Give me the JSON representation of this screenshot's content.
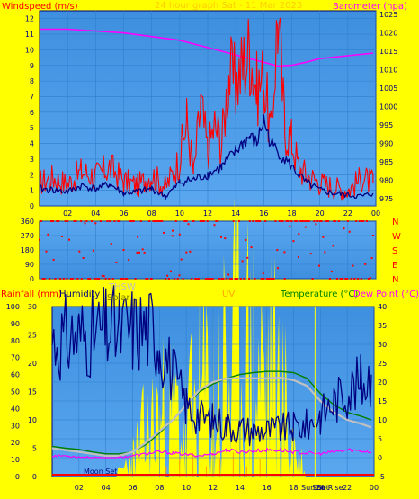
{
  "colors": {
    "background": "#ffff00",
    "plot_bg": "#3e8fdf",
    "plot_bg_light": "#5aa7ef",
    "axis": "#000080",
    "wind": "#ff0000",
    "wind_avg": "#000080",
    "barometer": "#ff00ff",
    "dir": "#ff0000",
    "humidity": "#000080",
    "rain": "#ff0000",
    "solar": "#ffff00",
    "uv": "#ffa500",
    "temperature": "#008000",
    "thsw": "#c0c0c0",
    "dewpoint": "#ff00ff"
  },
  "top": {
    "title": "24 hour graph Sat - 11 Mar 2023",
    "left_label": "Windspeed (m/s)",
    "right_label": "Barometer (hpa)"
  },
  "middle": {
    "compass": [
      "N",
      "W",
      "S",
      "E",
      "N"
    ]
  },
  "bottom": {
    "labels": {
      "rain": "Rainfall (mm)",
      "humidity": "Humidity",
      "thsw": "THSW",
      "solar": "Solar",
      "uv": "UV",
      "temperature": "Temperature (°C)",
      "dewpoint": "Dew Point (°C)"
    },
    "moon_set": "Moon Set",
    "sun_set": "Sun Set",
    "sun_rise": "Sun Rise"
  },
  "chart_data": [
    {
      "type": "line",
      "name": "wind-barometer",
      "x_ticks": [
        "02",
        "04",
        "06",
        "08",
        "10",
        "12",
        "14",
        "16",
        "18",
        "20",
        "22",
        "00"
      ],
      "x_hours": [
        1,
        3,
        5,
        7,
        9,
        11,
        13,
        15,
        17,
        19,
        21,
        23
      ],
      "y_left_ticks": [
        "0",
        "1",
        "2",
        "3",
        "4",
        "5",
        "6",
        "7",
        "8",
        "9",
        "10",
        "11",
        "12"
      ],
      "y_left_lim": [
        0,
        12.5
      ],
      "y_right_ticks": [
        "975",
        "980",
        "985",
        "990",
        "995",
        "1000",
        "1005",
        "1010",
        "1015",
        "1020",
        "1025"
      ],
      "y_right_lim": [
        973,
        1026
      ],
      "series": [
        {
          "key": "wind_gust",
          "axis": "left",
          "x": [
            0,
            1,
            2,
            3,
            4,
            5,
            6,
            7,
            8,
            9,
            10,
            10.5,
            11,
            11.5,
            12,
            12.5,
            13,
            13.5,
            14,
            14.5,
            15,
            15.5,
            16,
            16.5,
            17,
            17.5,
            18,
            18.5,
            19,
            20,
            21,
            22,
            23,
            23.8
          ],
          "y": [
            1.5,
            1.8,
            1.4,
            2.2,
            1.9,
            2.5,
            1.6,
            1.3,
            2.0,
            1.2,
            3.0,
            5.5,
            2.0,
            6.5,
            3.5,
            5.2,
            4.0,
            8.5,
            7.8,
            9.0,
            10.0,
            7.5,
            8.2,
            4.5,
            12.2,
            5.0,
            4.2,
            2.5,
            2.0,
            1.5,
            1.2,
            1.0,
            1.8,
            1.5
          ]
        },
        {
          "key": "wind_avg",
          "axis": "left",
          "x": [
            0,
            1,
            2,
            3,
            4,
            5,
            6,
            7,
            8,
            9,
            10,
            11,
            12,
            13,
            14,
            14.5,
            15,
            15.5,
            16,
            16.5,
            17,
            18,
            19,
            20,
            21,
            22,
            23,
            23.8
          ],
          "y": [
            1.1,
            1.0,
            0.9,
            1.3,
            1.1,
            1.4,
            0.8,
            0.9,
            1.1,
            0.6,
            1.5,
            1.7,
            2.0,
            2.5,
            3.5,
            4.0,
            4.4,
            4.0,
            5.5,
            4.0,
            3.5,
            2.5,
            1.5,
            1.0,
            0.8,
            0.7,
            0.6,
            0.8
          ]
        },
        {
          "key": "barometer",
          "axis": "right",
          "x": [
            0,
            2,
            4,
            6,
            8,
            10,
            12,
            14,
            16,
            17,
            18,
            19,
            20,
            22,
            23.8
          ],
          "y": [
            1021,
            1021,
            1020.5,
            1020,
            1019,
            1018,
            1016,
            1014,
            1012,
            1011,
            1011.2,
            1012,
            1013,
            1013.8,
            1014.5
          ]
        }
      ]
    },
    {
      "type": "scatter",
      "name": "wind-direction",
      "x_ticks": [
        "02",
        "04",
        "06",
        "08",
        "10",
        "12",
        "14",
        "16",
        "18",
        "20",
        "22",
        "00"
      ],
      "y_ticks": [
        "0",
        "90",
        "180",
        "270",
        "360"
      ],
      "y_lim": [
        0,
        360
      ],
      "series": [
        {
          "key": "direction",
          "x": [
            0,
            1,
            2,
            3,
            4,
            5,
            6,
            7,
            8,
            8.5,
            9,
            9.5,
            10,
            10.5,
            11,
            11.5,
            12,
            13,
            14,
            15,
            16,
            17,
            17.5,
            18,
            18.5,
            19,
            20,
            21,
            22,
            23,
            23.8
          ],
          "y": [
            260,
            270,
            265,
            262,
            268,
            270,
            262,
            268,
            262,
            250,
            200,
            120,
            180,
            230,
            190,
            250,
            275,
            270,
            280,
            282,
            285,
            290,
            330,
            330,
            285,
            250,
            255,
            260,
            270,
            265,
            270
          ]
        }
      ]
    },
    {
      "type": "line",
      "name": "temperature-humidity",
      "x_ticks": [
        "02",
        "04",
        "06",
        "08",
        "10",
        "12",
        "14",
        "16",
        "18",
        "20",
        "22",
        "00"
      ],
      "y_left_ticks": [
        "0",
        "10",
        "20",
        "30",
        "40",
        "50",
        "60",
        "70",
        "80",
        "90",
        "100"
      ],
      "y_left_lim": [
        0,
        100
      ],
      "y_rain_ticks": [
        "0",
        "5",
        "10",
        "15",
        "20",
        "25",
        "30"
      ],
      "y_rain_lim": [
        0,
        30
      ],
      "y_right_ticks": [
        "-5",
        "0",
        "5",
        "10",
        "15",
        "20",
        "25",
        "30",
        "35",
        "40"
      ],
      "y_right_lim": [
        -5,
        40
      ],
      "series": [
        {
          "key": "humidity",
          "axis": "left",
          "x": [
            0,
            1,
            2,
            3,
            4,
            5,
            6,
            7,
            7.5,
            8,
            9,
            10,
            11,
            12,
            13,
            14,
            15,
            16,
            17,
            18,
            19,
            20,
            21,
            22,
            23,
            23.8
          ],
          "y": [
            80,
            82,
            83,
            84,
            86,
            86,
            87,
            87,
            86,
            80,
            60,
            42,
            35,
            33,
            30,
            28,
            27,
            27,
            28,
            29,
            30,
            36,
            44,
            50,
            55,
            60
          ]
        },
        {
          "key": "temperature",
          "axis": "right",
          "x": [
            0,
            1,
            2,
            3,
            4,
            5,
            6,
            7,
            8,
            9,
            10,
            11,
            12,
            13,
            14,
            15,
            16,
            17,
            18,
            19,
            20,
            21,
            22,
            23,
            23.8
          ],
          "y": [
            3,
            2.5,
            2.2,
            1.5,
            1.0,
            1.0,
            1.5,
            3.5,
            6.5,
            10,
            14,
            17.5,
            19.5,
            21,
            22,
            22.5,
            22.8,
            22.8,
            22.5,
            21,
            17,
            14,
            12,
            11,
            10
          ]
        },
        {
          "key": "thsw",
          "axis": "right",
          "x": [
            0,
            1,
            2,
            3,
            4,
            5,
            6,
            7,
            8,
            9,
            10,
            11,
            12,
            13,
            14,
            15,
            16,
            17,
            18,
            19,
            20,
            21,
            22,
            23,
            23.8
          ],
          "y": [
            2.5,
            2.0,
            1.5,
            1.0,
            0.5,
            0.5,
            1.5,
            4.0,
            7,
            10,
            14,
            18,
            20,
            21,
            21,
            21,
            21,
            21.2,
            20.5,
            19,
            15,
            12,
            10,
            9,
            8
          ]
        },
        {
          "key": "dewpoint",
          "axis": "right",
          "x": [
            0,
            1,
            2,
            3,
            4,
            5,
            6,
            7,
            8,
            9,
            10,
            11,
            12,
            13,
            14,
            15,
            16,
            17,
            18,
            19,
            20,
            21,
            22,
            23,
            23.8
          ],
          "y": [
            0.5,
            0.5,
            0.2,
            0,
            -0.2,
            0,
            0.5,
            1,
            1.5,
            1.2,
            0.8,
            0.5,
            1,
            2,
            1.5,
            1.8,
            2,
            2,
            1.5,
            1.2,
            1.0,
            1.5,
            2,
            1.8,
            1.5
          ]
        },
        {
          "key": "solar",
          "axis": "left",
          "x": [
            4.8,
            6,
            7,
            8,
            9,
            10,
            11,
            12,
            13,
            14,
            15,
            16,
            17,
            18,
            18.9
          ],
          "y": [
            0,
            10,
            22,
            30,
            32,
            30,
            42,
            48,
            58,
            60,
            60,
            56,
            45,
            20,
            0
          ]
        }
      ]
    }
  ]
}
